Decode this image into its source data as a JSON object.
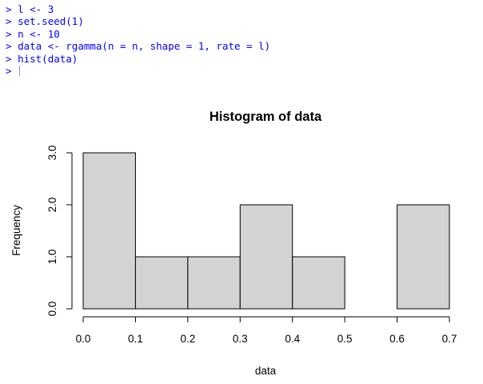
{
  "console": {
    "prompt": ">",
    "lines": [
      "l <- 3",
      "set.seed(1)",
      "n <- 10",
      "data <- rgamma(n = n, shape = 1, rate = l)",
      "hist(data)",
      ""
    ],
    "text_color": "#0000ff"
  },
  "chart_data": {
    "type": "bar",
    "title": "Histogram of data",
    "xlabel": "data",
    "ylabel": "Frequency",
    "bins": [
      {
        "from": 0.0,
        "to": 0.1,
        "count": 3
      },
      {
        "from": 0.1,
        "to": 0.2,
        "count": 1
      },
      {
        "from": 0.2,
        "to": 0.3,
        "count": 1
      },
      {
        "from": 0.3,
        "to": 0.4,
        "count": 2
      },
      {
        "from": 0.4,
        "to": 0.5,
        "count": 1
      },
      {
        "from": 0.5,
        "to": 0.6,
        "count": 0
      },
      {
        "from": 0.6,
        "to": 0.7,
        "count": 2
      }
    ],
    "xticks": [
      "0.0",
      "0.1",
      "0.2",
      "0.3",
      "0.4",
      "0.5",
      "0.6",
      "0.7"
    ],
    "yticks": [
      "0.0",
      "1.0",
      "2.0",
      "3.0"
    ],
    "xlim": [
      0,
      0.7
    ],
    "ylim": [
      0,
      3
    ],
    "grid": false,
    "bar_fill": "#d3d3d3",
    "bar_stroke": "#000000"
  }
}
